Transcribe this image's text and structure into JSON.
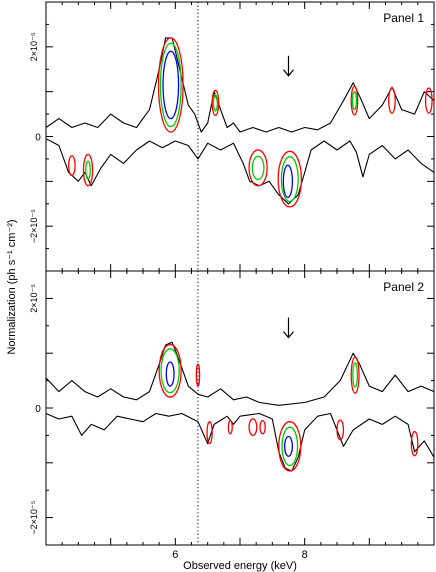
{
  "figure": {
    "ylabel": "Normalization (ph s⁻¹ cm⁻²)",
    "xlabel": "Observed energy (keV)"
  },
  "chart_data": [
    {
      "type": "contour",
      "title": "Panel 1",
      "xlim": [
        4.0,
        10.0
      ],
      "ylim": [
        -3e-05,
        3e-05
      ],
      "x_ticks": [
        {
          "value": 6,
          "label": "6"
        },
        {
          "value": 8,
          "label": "8"
        }
      ],
      "y_ticks": [
        {
          "value": 2e-05,
          "label": "2×10⁻⁵"
        },
        {
          "value": 0,
          "label": "0"
        },
        {
          "value": -2e-05,
          "label": "−2×10⁻⁵"
        }
      ],
      "reference_line_keV": 6.35,
      "arrow_keV": 7.75,
      "upper_envelope": [
        [
          4.0,
          0.2
        ],
        [
          4.2,
          0.4
        ],
        [
          4.4,
          0.2
        ],
        [
          4.6,
          0.3
        ],
        [
          4.8,
          0.2
        ],
        [
          5.0,
          0.5
        ],
        [
          5.2,
          0.3
        ],
        [
          5.4,
          0.2
        ],
        [
          5.6,
          0.6
        ],
        [
          5.75,
          1.5
        ],
        [
          5.85,
          2.2
        ],
        [
          5.95,
          2.2
        ],
        [
          6.05,
          1.6
        ],
        [
          6.2,
          0.7
        ],
        [
          6.3,
          0.5
        ],
        [
          6.4,
          0.1
        ],
        [
          6.5,
          0.3
        ],
        [
          6.6,
          1.0
        ],
        [
          6.7,
          0.6
        ],
        [
          6.8,
          0.2
        ],
        [
          6.9,
          0.3
        ],
        [
          7.0,
          0.1
        ],
        [
          7.2,
          0.2
        ],
        [
          7.4,
          0.1
        ],
        [
          7.6,
          0.2
        ],
        [
          7.8,
          0.1
        ],
        [
          8.0,
          0.2
        ],
        [
          8.2,
          0.15
        ],
        [
          8.4,
          0.3
        ],
        [
          8.6,
          0.8
        ],
        [
          8.75,
          1.2
        ],
        [
          8.85,
          0.9
        ],
        [
          9.0,
          0.4
        ],
        [
          9.2,
          0.7
        ],
        [
          9.35,
          1.1
        ],
        [
          9.5,
          0.6
        ],
        [
          9.7,
          0.5
        ],
        [
          9.85,
          1.0
        ],
        [
          10.0,
          0.8
        ]
      ],
      "lower_envelope": [
        [
          4.0,
          -0.05
        ],
        [
          4.2,
          -0.2
        ],
        [
          4.35,
          -0.8
        ],
        [
          4.5,
          -1.0
        ],
        [
          4.6,
          -0.8
        ],
        [
          4.7,
          -1.1
        ],
        [
          4.85,
          -0.7
        ],
        [
          5.0,
          -0.4
        ],
        [
          5.2,
          -0.6
        ],
        [
          5.4,
          -0.3
        ],
        [
          5.6,
          -0.1
        ],
        [
          5.8,
          -0.25
        ],
        [
          6.0,
          -0.1
        ],
        [
          6.2,
          -0.2
        ],
        [
          6.35,
          -0.5
        ],
        [
          6.5,
          -0.15
        ],
        [
          6.7,
          -0.3
        ],
        [
          6.9,
          -0.15
        ],
        [
          7.05,
          -0.6
        ],
        [
          7.15,
          -1.0
        ],
        [
          7.3,
          -1.1
        ],
        [
          7.45,
          -1.0
        ],
        [
          7.6,
          -1.3
        ],
        [
          7.75,
          -1.5
        ],
        [
          7.9,
          -1.3
        ],
        [
          8.0,
          -0.8
        ],
        [
          8.1,
          -0.3
        ],
        [
          8.3,
          -0.1
        ],
        [
          8.5,
          -0.3
        ],
        [
          8.7,
          -0.1
        ],
        [
          8.8,
          -0.35
        ],
        [
          8.9,
          -0.9
        ],
        [
          9.0,
          -0.4
        ],
        [
          9.2,
          -0.2
        ],
        [
          9.4,
          -0.5
        ],
        [
          9.6,
          -0.3
        ],
        [
          9.8,
          -0.6
        ],
        [
          10.0,
          -0.8
        ]
      ],
      "contours": [
        {
          "level": "red",
          "cx": 5.93,
          "cy": 1.15,
          "rx": 0.19,
          "ry": 1.05
        },
        {
          "level": "green",
          "cx": 5.93,
          "cy": 1.15,
          "rx": 0.16,
          "ry": 0.93
        },
        {
          "level": "blue",
          "cx": 5.93,
          "cy": 1.15,
          "rx": 0.12,
          "ry": 0.75
        },
        {
          "level": "red",
          "cx": 6.62,
          "cy": 0.75,
          "rx": 0.05,
          "ry": 0.28
        },
        {
          "level": "green",
          "cx": 6.62,
          "cy": 0.75,
          "rx": 0.03,
          "ry": 0.18
        },
        {
          "level": "red",
          "cx": 8.77,
          "cy": 0.8,
          "rx": 0.05,
          "ry": 0.32
        },
        {
          "level": "green",
          "cx": 8.77,
          "cy": 0.8,
          "rx": 0.03,
          "ry": 0.2
        },
        {
          "level": "red",
          "cx": 9.35,
          "cy": 0.8,
          "rx": 0.05,
          "ry": 0.28
        },
        {
          "level": "red",
          "cx": 9.92,
          "cy": 0.8,
          "rx": 0.05,
          "ry": 0.28
        },
        {
          "level": "red",
          "cx": 4.4,
          "cy": -0.65,
          "rx": 0.05,
          "ry": 0.22
        },
        {
          "level": "red",
          "cx": 4.65,
          "cy": -0.75,
          "rx": 0.07,
          "ry": 0.35
        },
        {
          "level": "green",
          "cx": 4.65,
          "cy": -0.75,
          "rx": 0.035,
          "ry": 0.2
        },
        {
          "level": "red",
          "cx": 7.28,
          "cy": -0.7,
          "rx": 0.14,
          "ry": 0.4
        },
        {
          "level": "green",
          "cx": 7.28,
          "cy": -0.7,
          "rx": 0.09,
          "ry": 0.26
        },
        {
          "level": "red",
          "cx": 7.77,
          "cy": -0.95,
          "rx": 0.18,
          "ry": 0.62
        },
        {
          "level": "green",
          "cx": 7.77,
          "cy": -0.95,
          "rx": 0.13,
          "ry": 0.5
        },
        {
          "level": "blue",
          "cx": 7.74,
          "cy": -1.0,
          "rx": 0.07,
          "ry": 0.36
        }
      ]
    },
    {
      "type": "contour",
      "title": "Panel 2",
      "xlim": [
        4.0,
        10.0
      ],
      "ylim": [
        -2.5e-05,
        2.5e-05
      ],
      "x_ticks": [
        {
          "value": 6,
          "label": "6"
        },
        {
          "value": 8,
          "label": "8"
        }
      ],
      "y_ticks": [
        {
          "value": 2e-05,
          "label": "2×10⁻⁵"
        },
        {
          "value": 0,
          "label": "0"
        },
        {
          "value": -2e-05,
          "label": "−2×10⁻⁵"
        }
      ],
      "reference_line_keV": 6.35,
      "arrow_keV": 7.75,
      "upper_envelope": [
        [
          4.0,
          0.55
        ],
        [
          4.2,
          0.3
        ],
        [
          4.4,
          0.5
        ],
        [
          4.6,
          0.3
        ],
        [
          4.8,
          0.2
        ],
        [
          5.0,
          0.35
        ],
        [
          5.2,
          0.2
        ],
        [
          5.4,
          0.15
        ],
        [
          5.6,
          0.3
        ],
        [
          5.75,
          0.8
        ],
        [
          5.85,
          1.15
        ],
        [
          5.95,
          1.2
        ],
        [
          6.05,
          0.9
        ],
        [
          6.2,
          0.4
        ],
        [
          6.35,
          0.25
        ],
        [
          6.5,
          0.2
        ],
        [
          6.7,
          0.35
        ],
        [
          6.9,
          0.15
        ],
        [
          7.1,
          0.2
        ],
        [
          7.3,
          0.1
        ],
        [
          7.6,
          0.05
        ],
        [
          8.0,
          0.1
        ],
        [
          8.3,
          0.2
        ],
        [
          8.55,
          0.5
        ],
        [
          8.75,
          1.0
        ],
        [
          8.85,
          0.8
        ],
        [
          9.0,
          0.4
        ],
        [
          9.2,
          0.3
        ],
        [
          9.4,
          0.6
        ],
        [
          9.6,
          0.3
        ],
        [
          9.8,
          0.4
        ],
        [
          10.0,
          0.3
        ]
      ],
      "lower_envelope": [
        [
          4.0,
          -0.1
        ],
        [
          4.2,
          -0.2
        ],
        [
          4.4,
          -0.15
        ],
        [
          4.55,
          -0.5
        ],
        [
          4.7,
          -0.3
        ],
        [
          4.9,
          -0.4
        ],
        [
          5.1,
          -0.15
        ],
        [
          5.3,
          -0.2
        ],
        [
          5.5,
          -0.25
        ],
        [
          5.7,
          -0.1
        ],
        [
          5.9,
          -0.15
        ],
        [
          6.1,
          -0.1
        ],
        [
          6.35,
          -0.25
        ],
        [
          6.5,
          -0.65
        ],
        [
          6.6,
          -0.3
        ],
        [
          6.8,
          -0.15
        ],
        [
          6.9,
          -0.3
        ],
        [
          7.0,
          -0.15
        ],
        [
          7.3,
          -0.1
        ],
        [
          7.5,
          -0.2
        ],
        [
          7.6,
          -0.8
        ],
        [
          7.7,
          -1.1
        ],
        [
          7.8,
          -1.15
        ],
        [
          7.9,
          -0.9
        ],
        [
          8.0,
          -0.4
        ],
        [
          8.2,
          -0.15
        ],
        [
          8.4,
          -0.1
        ],
        [
          8.6,
          -0.7
        ],
        [
          8.75,
          -0.4
        ],
        [
          9.0,
          -0.2
        ],
        [
          9.2,
          -0.3
        ],
        [
          9.4,
          -0.15
        ],
        [
          9.6,
          -0.3
        ],
        [
          9.7,
          -0.8
        ],
        [
          9.85,
          -0.6
        ],
        [
          10.0,
          -0.9
        ]
      ],
      "contours": [
        {
          "level": "red",
          "cx": 5.92,
          "cy": 0.68,
          "rx": 0.17,
          "ry": 0.48
        },
        {
          "level": "green",
          "cx": 5.92,
          "cy": 0.68,
          "rx": 0.14,
          "ry": 0.4
        },
        {
          "level": "blue",
          "cx": 5.92,
          "cy": 0.62,
          "rx": 0.06,
          "ry": 0.22
        },
        {
          "level": "red",
          "cx": 6.35,
          "cy": 0.6,
          "rx": 0.025,
          "ry": 0.2
        },
        {
          "level": "red",
          "cx": 8.78,
          "cy": 0.6,
          "rx": 0.06,
          "ry": 0.33
        },
        {
          "level": "green",
          "cx": 8.78,
          "cy": 0.6,
          "rx": 0.035,
          "ry": 0.22
        },
        {
          "level": "red",
          "cx": 6.53,
          "cy": -0.45,
          "rx": 0.04,
          "ry": 0.2
        },
        {
          "level": "red",
          "cx": 6.85,
          "cy": -0.35,
          "rx": 0.03,
          "ry": 0.12
        },
        {
          "level": "red",
          "cx": 7.2,
          "cy": -0.35,
          "rx": 0.06,
          "ry": 0.15
        },
        {
          "level": "red",
          "cx": 7.35,
          "cy": -0.35,
          "rx": 0.04,
          "ry": 0.12
        },
        {
          "level": "red",
          "cx": 7.77,
          "cy": -0.7,
          "rx": 0.17,
          "ry": 0.45
        },
        {
          "level": "green",
          "cx": 7.77,
          "cy": -0.7,
          "rx": 0.12,
          "ry": 0.35
        },
        {
          "level": "blue",
          "cx": 7.75,
          "cy": -0.7,
          "rx": 0.06,
          "ry": 0.18
        },
        {
          "level": "red",
          "cx": 8.55,
          "cy": -0.4,
          "rx": 0.05,
          "ry": 0.18
        },
        {
          "level": "red",
          "cx": 9.7,
          "cy": -0.65,
          "rx": 0.05,
          "ry": 0.22
        }
      ]
    }
  ],
  "colors": {
    "red": "#ff0000",
    "green": "#00cc00",
    "blue": "#0000ff",
    "line": "#000000"
  }
}
